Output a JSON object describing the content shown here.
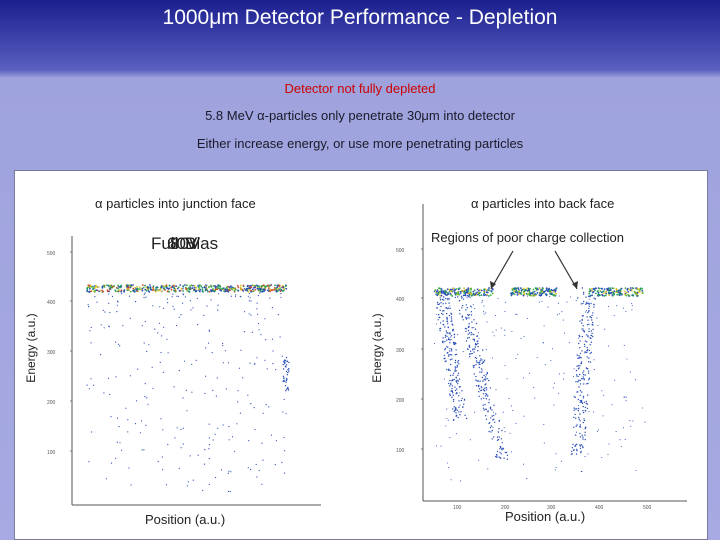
{
  "title": "1000μm Detector Performance - Depletion",
  "bullets": {
    "line1": "Detector not fully depleted",
    "line2": "5.8 MeV α-particles only penetrate 30μm into detector",
    "line3": "Either increase energy, or use more penetrating particles"
  },
  "left_plot": {
    "title": "α particles into junction face",
    "overlap_labels": [
      "Full",
      "60V",
      "80V",
      "Bias"
    ],
    "ylabel": "Energy (a.u.)",
    "xlabel": "Position (a.u.)",
    "yticks": [
      "500",
      "400",
      "300",
      "200",
      "100"
    ]
  },
  "right_plot": {
    "title": "α particles into back face",
    "annotation": "Regions of poor charge collection",
    "ylabel": "Energy (a.u.)",
    "xlabel": "Position (a.u.)",
    "yticks": [
      "500",
      "400",
      "300",
      "200",
      "100"
    ],
    "xticks": [
      "100",
      "200",
      "300",
      "400",
      "500"
    ]
  },
  "colors": {
    "title_bar": "#1a1f8f",
    "background": "#a6a9e2",
    "highlight_text": "#cc0000",
    "points": "#2b4fb8"
  }
}
